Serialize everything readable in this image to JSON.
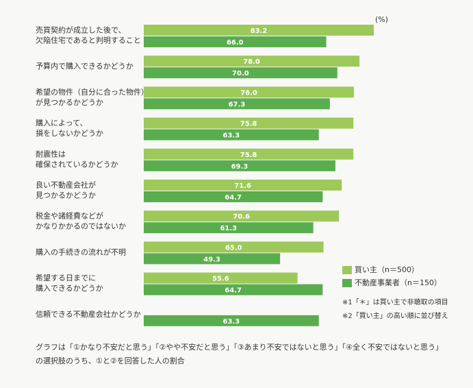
{
  "chart_data": {
    "type": "bar",
    "orientation": "horizontal",
    "unit": "(%)",
    "categories": [
      "売買契約が成立した後で、\n欠陥住宅であると判明すること",
      "予算内で購入できるかどうか",
      "希望の物件（自分に合った物件）\nが見つかるかどうか",
      "購入によって、\n損をしないかどうか",
      "耐震性は\n確保されているかどうか",
      "良い不動産会社が\n見つかるかどうか",
      "税金や諸経費などが\nかなりかかるのではないか",
      "購入の手続きの流れが不明",
      "希望する日までに\n購入できるかどうか",
      "信頼できる不動産会社かどうか"
    ],
    "series": [
      {
        "name": "買い主（n＝500）",
        "color": "#9dc95a",
        "values": [
          83.2,
          78.0,
          76.0,
          75.8,
          75.8,
          71.6,
          70.6,
          65.0,
          55.6,
          null
        ],
        "value_labels": [
          "83.2",
          "78.0",
          "76.0",
          "75.8",
          "75.8",
          "71.6",
          "70.6",
          "65.0",
          "55.6",
          null
        ]
      },
      {
        "name": "不動産事業者（n＝150）",
        "color": "#5aad4e",
        "values": [
          66.0,
          70.0,
          67.3,
          63.3,
          69.3,
          64.7,
          61.3,
          49.3,
          64.7,
          63.3
        ],
        "value_labels": [
          "66.0",
          "70.0",
          "67.3",
          "63.3",
          "69.3",
          "64.7",
          "61.3",
          "49.3",
          "64.7",
          "63.3"
        ]
      }
    ],
    "notes": [
      "※1「＊」は買い主で非聴取の項目",
      "※2「買い主」の高い順に並び替え"
    ],
    "footnote": "グラフは「①かなり不安だと思う」「②やや不安だと思う」「③あまり不安ではないと思う」「④全く不安ではないと思う」の選択肢のうち、①と②を回答した人の割合"
  }
}
